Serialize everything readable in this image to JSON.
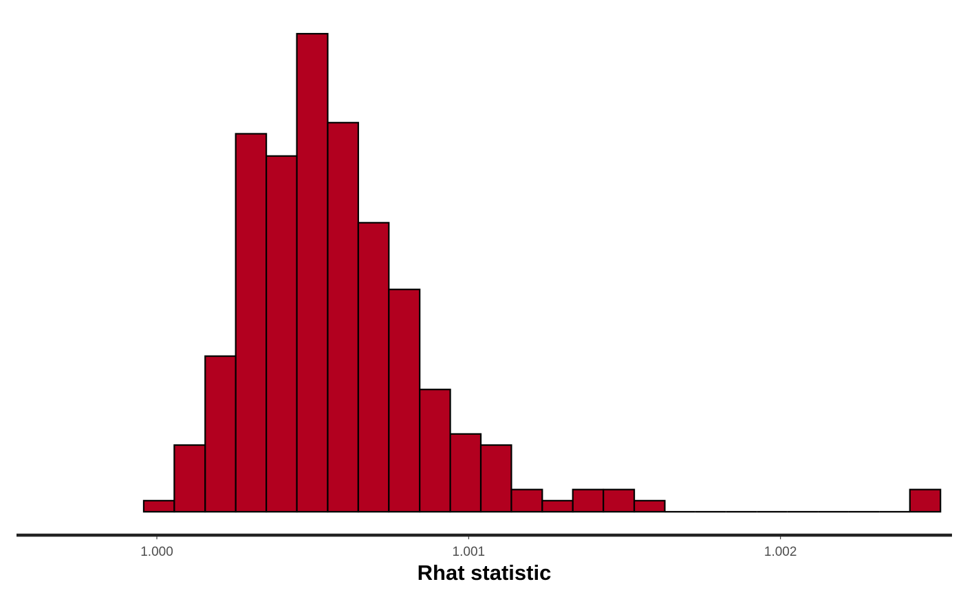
{
  "chart_data": {
    "type": "bar",
    "subtype": "histogram",
    "title": "",
    "xlabel": "Rhat statistic",
    "ylabel": "",
    "xlim": [
      0.99955,
      1.00255
    ],
    "x_ticks": [
      1.0,
      1.001,
      1.002
    ],
    "x_tick_labels": [
      "1.000",
      "1.001",
      "1.002"
    ],
    "y_axis_shown": false,
    "grid": false,
    "fill_color": "#b2001f",
    "outline_color": "#000000",
    "axis_color": "#222222",
    "bin_width": 9.82e-05,
    "bins": [
      {
        "x0": 0.999958,
        "x1": 1.000056,
        "count": 1
      },
      {
        "x0": 1.000056,
        "x1": 1.000155,
        "count": 6
      },
      {
        "x0": 1.000155,
        "x1": 1.000253,
        "count": 14
      },
      {
        "x0": 1.000253,
        "x1": 1.000351,
        "count": 34
      },
      {
        "x0": 1.000351,
        "x1": 1.000449,
        "count": 32
      },
      {
        "x0": 1.000449,
        "x1": 1.000548,
        "count": 43
      },
      {
        "x0": 1.000548,
        "x1": 1.000646,
        "count": 35
      },
      {
        "x0": 1.000646,
        "x1": 1.000744,
        "count": 26
      },
      {
        "x0": 1.000744,
        "x1": 1.000843,
        "count": 20
      },
      {
        "x0": 1.000843,
        "x1": 1.000941,
        "count": 11
      },
      {
        "x0": 1.000941,
        "x1": 1.001039,
        "count": 7
      },
      {
        "x0": 1.001039,
        "x1": 1.001137,
        "count": 6
      },
      {
        "x0": 1.001137,
        "x1": 1.001236,
        "count": 2
      },
      {
        "x0": 1.001236,
        "x1": 1.001334,
        "count": 1
      },
      {
        "x0": 1.001334,
        "x1": 1.001432,
        "count": 2
      },
      {
        "x0": 1.001432,
        "x1": 1.001531,
        "count": 2
      },
      {
        "x0": 1.001531,
        "x1": 1.001629,
        "count": 1
      },
      {
        "x0": 1.001629,
        "x1": 1.001727,
        "count": 0
      },
      {
        "x0": 1.001727,
        "x1": 1.001825,
        "count": 0
      },
      {
        "x0": 1.001825,
        "x1": 1.001924,
        "count": 0
      },
      {
        "x0": 1.001924,
        "x1": 1.002022,
        "count": 0
      },
      {
        "x0": 1.002022,
        "x1": 1.00212,
        "count": 0
      },
      {
        "x0": 1.00212,
        "x1": 1.002219,
        "count": 0
      },
      {
        "x0": 1.002219,
        "x1": 1.002317,
        "count": 0
      },
      {
        "x0": 1.002317,
        "x1": 1.002415,
        "count": 0
      },
      {
        "x0": 1.002415,
        "x1": 1.002513,
        "count": 2
      }
    ],
    "ylim": [
      0,
      43
    ]
  }
}
